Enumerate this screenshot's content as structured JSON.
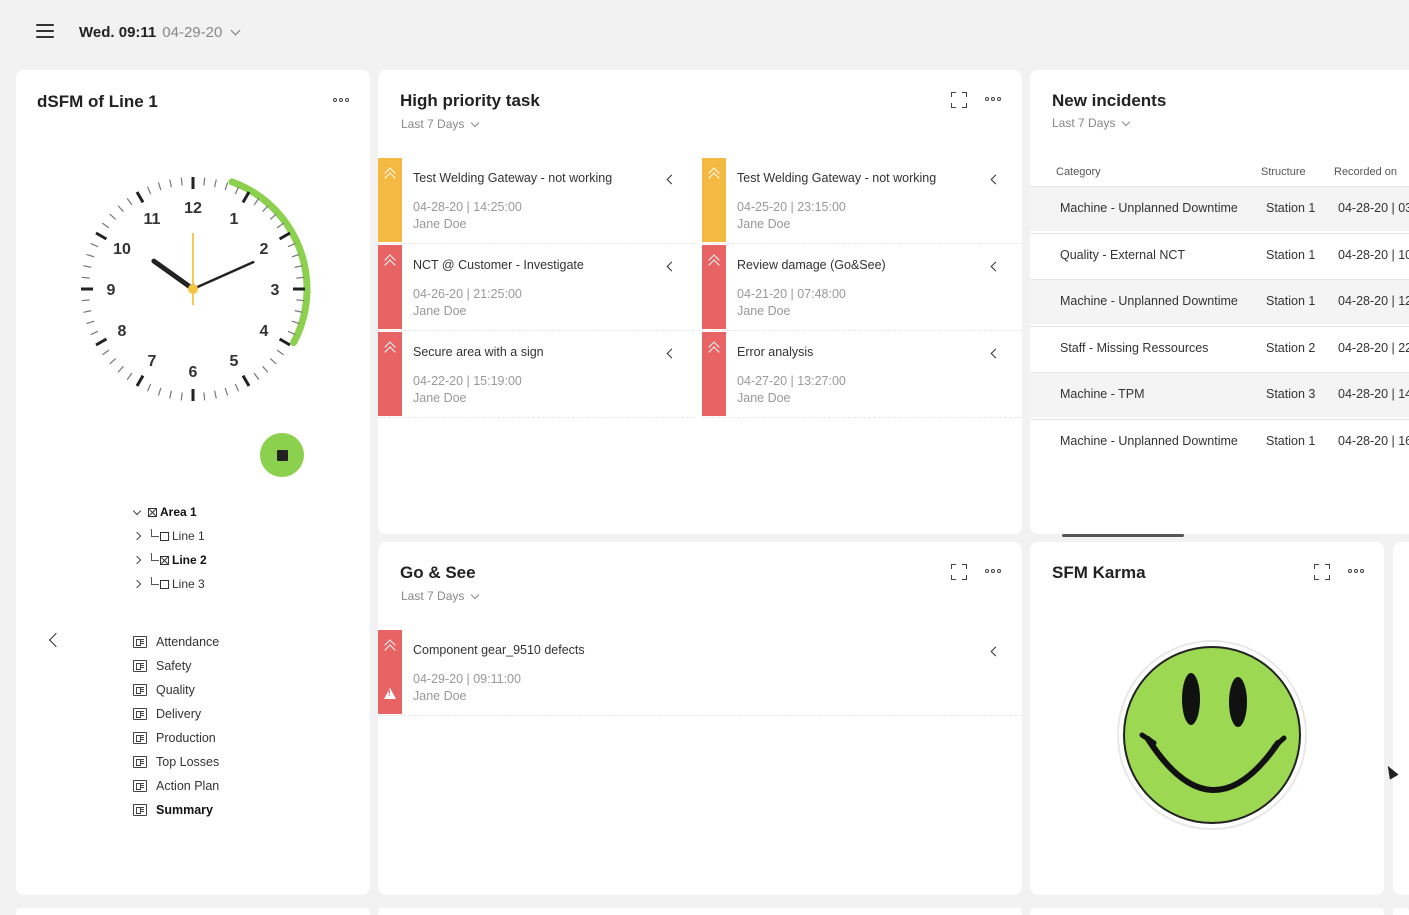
{
  "header": {
    "menu_icon": "hamburger-icon",
    "day_time": "Wed. 09:11",
    "date": "04-29-20"
  },
  "dsfm": {
    "title": "dSFM of Line 1",
    "clock": {
      "numbers": [
        "12",
        "1",
        "2",
        "3",
        "4",
        "5",
        "6",
        "7",
        "8",
        "9",
        "10",
        "11"
      ],
      "time": "10:11",
      "progress_color": "#8cd14e"
    },
    "stop_button": "stop-icon",
    "tree": {
      "root": "Area 1",
      "children": [
        "Line 1",
        "Line 2",
        "Line 3"
      ],
      "selected": "Line 2"
    },
    "menu": [
      "Attendance",
      "Safety",
      "Quality",
      "Delivery",
      "Production",
      "Top Losses",
      "Action Plan",
      "Summary"
    ],
    "menu_active": "Summary"
  },
  "high_priority": {
    "title": "High priority task",
    "filter": "Last 7 Days",
    "tasks": [
      {
        "title": "Test Welding Gateway - not working",
        "date": "04-28-20 | 14:25:00",
        "user": "Jane Doe",
        "color": "#f4b942"
      },
      {
        "title": "Test Welding Gateway - not working",
        "date": "04-25-20 | 23:15:00",
        "user": "Jane Doe",
        "color": "#f4b942"
      },
      {
        "title": "NCT @ Customer - Investigate",
        "date": "04-26-20 | 21:25:00",
        "user": "Jane Doe",
        "color": "#e86464"
      },
      {
        "title": "Review damage (Go&See)",
        "date": "04-21-20 | 07:48:00",
        "user": "Jane Doe",
        "color": "#e86464"
      },
      {
        "title": "Secure area with a sign",
        "date": "04-22-20 | 15:19:00",
        "user": "Jane Doe",
        "color": "#e86464"
      },
      {
        "title": "Error analysis",
        "date": "04-27-20 | 13:27:00",
        "user": "Jane Doe",
        "color": "#e86464"
      }
    ]
  },
  "incidents": {
    "title": "New incidents",
    "filter": "Last 7 Days",
    "columns": [
      "Category",
      "Structure",
      "Recorded on"
    ],
    "rows": [
      [
        "Machine - Unplanned Downtime",
        "Station 1",
        "04-28-20 | 03"
      ],
      [
        "Quality - External NCT",
        "Station 1",
        "04-28-20 | 10"
      ],
      [
        "Machine - Unplanned Downtime",
        "Station 1",
        "04-28-20 | 12"
      ],
      [
        "Staff - Missing Ressources",
        "Station 2",
        "04-28-20 | 22"
      ],
      [
        "Machine - TPM",
        "Station 3",
        "04-28-20 | 14"
      ],
      [
        "Machine - Unplanned Downtime",
        "Station 1",
        "04-28-20 | 16"
      ]
    ]
  },
  "go_see": {
    "title": "Go & See",
    "filter": "Last 7 Days",
    "tasks": [
      {
        "title": "Component gear_9510 defects",
        "date": "04-29-20 | 09:11:00",
        "user": "Jane Doe",
        "color": "#e86464"
      }
    ]
  },
  "karma": {
    "title": "SFM Karma",
    "face": "smiley-face-icon",
    "face_color": "#9dd852"
  }
}
